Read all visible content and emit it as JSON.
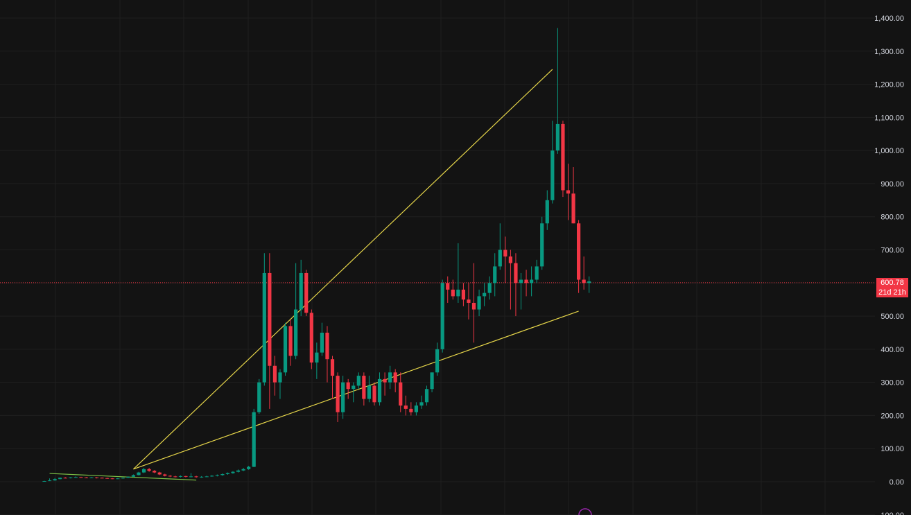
{
  "colors": {
    "background": "#131313",
    "grid": "#1f1f1f",
    "up": "#089981",
    "down": "#f23645",
    "trendline": "#e6d64a",
    "small_trendline": "#7cc146",
    "price_line": "#f23645",
    "axis_text": "#d1d4dc",
    "marker": "#9c27b0"
  },
  "price_badge": {
    "price": "600.78",
    "countdown": "21d 21h"
  },
  "chart_data": {
    "type": "candlestick",
    "ylim": [
      -100,
      1400
    ],
    "yticks": [
      "1,400.00",
      "1,300.00",
      "1,200.00",
      "1,100.00",
      "1,000.00",
      "900.00",
      "800.00",
      "700.00",
      "600.00",
      "500.00",
      "400.00",
      "300.00",
      "200.00",
      "100.00",
      "0.00",
      "-100.00"
    ],
    "ytick_values": [
      1400,
      1300,
      1200,
      1100,
      1000,
      900,
      800,
      700,
      600,
      500,
      400,
      300,
      200,
      100,
      0,
      -100
    ],
    "grid": true,
    "current_price": 600.78,
    "bar_count": 118,
    "candles": [
      [
        1,
        2,
        1,
        3,
        0
      ],
      [
        2,
        4,
        2,
        10,
        1
      ],
      [
        4,
        8,
        3,
        11,
        2
      ],
      [
        8,
        12,
        7,
        13,
        3
      ],
      [
        12,
        11,
        10,
        14,
        4
      ],
      [
        11,
        13,
        10,
        14,
        5
      ],
      [
        13,
        14,
        12,
        16,
        6
      ],
      [
        14,
        13,
        12,
        15,
        7
      ],
      [
        13,
        12,
        11,
        14,
        8
      ],
      [
        12,
        13,
        11,
        14,
        9
      ],
      [
        13,
        12,
        10,
        14,
        10
      ],
      [
        12,
        11,
        10,
        13,
        11
      ],
      [
        11,
        10,
        9,
        12,
        12
      ],
      [
        10,
        9,
        8,
        11,
        13
      ],
      [
        9,
        10,
        8,
        11,
        14
      ],
      [
        10,
        12,
        9,
        13,
        15
      ],
      [
        12,
        15,
        11,
        16,
        16
      ],
      [
        15,
        20,
        14,
        22,
        17
      ],
      [
        20,
        28,
        19,
        30,
        18
      ],
      [
        28,
        38,
        26,
        42,
        19
      ],
      [
        38,
        33,
        30,
        42,
        20
      ],
      [
        33,
        28,
        26,
        35,
        21
      ],
      [
        28,
        22,
        20,
        30,
        22
      ],
      [
        22,
        18,
        16,
        24,
        23
      ],
      [
        18,
        16,
        14,
        20,
        24
      ],
      [
        16,
        15,
        13,
        18,
        25
      ],
      [
        15,
        17,
        13,
        19,
        26
      ],
      [
        17,
        15,
        13,
        18,
        27
      ],
      [
        15,
        16,
        13,
        26,
        28
      ],
      [
        16,
        14,
        12,
        18,
        29
      ],
      [
        14,
        15,
        12,
        17,
        30
      ],
      [
        15,
        16,
        14,
        18,
        31
      ],
      [
        16,
        18,
        15,
        20,
        32
      ],
      [
        18,
        20,
        16,
        22,
        33
      ],
      [
        20,
        23,
        18,
        25,
        34
      ],
      [
        23,
        26,
        21,
        28,
        35
      ],
      [
        26,
        30,
        24,
        32,
        36
      ],
      [
        30,
        34,
        28,
        37,
        37
      ],
      [
        34,
        38,
        32,
        42,
        38
      ],
      [
        38,
        45,
        36,
        48,
        39
      ],
      [
        45,
        210,
        44,
        220,
        40
      ],
      [
        210,
        300,
        205,
        310,
        41
      ],
      [
        300,
        630,
        290,
        690,
        42
      ],
      [
        630,
        350,
        220,
        690,
        43
      ],
      [
        350,
        300,
        260,
        380,
        44
      ],
      [
        300,
        330,
        250,
        340,
        45
      ],
      [
        330,
        470,
        320,
        480,
        46
      ],
      [
        470,
        380,
        350,
        490,
        47
      ],
      [
        380,
        520,
        370,
        660,
        48
      ],
      [
        520,
        630,
        500,
        670,
        49
      ],
      [
        630,
        510,
        500,
        640,
        50
      ],
      [
        510,
        360,
        340,
        520,
        51
      ],
      [
        360,
        390,
        310,
        420,
        52
      ],
      [
        390,
        450,
        380,
        480,
        53
      ],
      [
        450,
        370,
        300,
        470,
        54
      ],
      [
        370,
        320,
        250,
        380,
        55
      ],
      [
        320,
        210,
        180,
        330,
        56
      ],
      [
        210,
        300,
        190,
        320,
        57
      ],
      [
        300,
        280,
        250,
        310,
        58
      ],
      [
        280,
        290,
        240,
        300,
        59
      ],
      [
        290,
        320,
        280,
        330,
        60
      ],
      [
        320,
        250,
        230,
        330,
        61
      ],
      [
        250,
        290,
        240,
        320,
        62
      ],
      [
        290,
        240,
        230,
        300,
        63
      ],
      [
        240,
        310,
        230,
        330,
        64
      ],
      [
        310,
        300,
        260,
        330,
        65
      ],
      [
        300,
        330,
        280,
        350,
        66
      ],
      [
        330,
        300,
        270,
        340,
        67
      ],
      [
        300,
        230,
        210,
        330,
        68
      ],
      [
        230,
        220,
        200,
        260,
        69
      ],
      [
        220,
        210,
        200,
        240,
        70
      ],
      [
        210,
        230,
        200,
        240,
        71
      ],
      [
        230,
        240,
        220,
        260,
        72
      ],
      [
        240,
        280,
        230,
        290,
        73
      ],
      [
        280,
        330,
        270,
        330,
        74
      ],
      [
        330,
        400,
        320,
        420,
        75
      ],
      [
        400,
        600,
        390,
        610,
        76
      ],
      [
        600,
        580,
        540,
        620,
        77
      ],
      [
        580,
        560,
        550,
        610,
        78
      ],
      [
        560,
        580,
        540,
        720,
        79
      ],
      [
        580,
        550,
        530,
        600,
        80
      ],
      [
        550,
        540,
        490,
        600,
        81
      ],
      [
        540,
        520,
        420,
        660,
        82
      ],
      [
        520,
        560,
        500,
        580,
        83
      ],
      [
        560,
        570,
        530,
        600,
        84
      ],
      [
        570,
        600,
        550,
        620,
        85
      ],
      [
        600,
        650,
        560,
        690,
        86
      ],
      [
        650,
        700,
        640,
        780,
        87
      ],
      [
        700,
        680,
        600,
        740,
        88
      ],
      [
        680,
        660,
        520,
        700,
        89
      ],
      [
        660,
        600,
        500,
        690,
        90
      ],
      [
        600,
        610,
        520,
        630,
        91
      ],
      [
        610,
        600,
        560,
        640,
        92
      ],
      [
        600,
        610,
        560,
        650,
        93
      ],
      [
        610,
        650,
        600,
        670,
        94
      ],
      [
        650,
        780,
        640,
        800,
        95
      ],
      [
        780,
        850,
        760,
        880,
        96
      ],
      [
        850,
        1000,
        840,
        1090,
        97
      ],
      [
        1000,
        1080,
        990,
        1370,
        98
      ],
      [
        1080,
        880,
        860,
        1090,
        99
      ],
      [
        880,
        870,
        790,
        960,
        100
      ],
      [
        870,
        780,
        780,
        950,
        101
      ],
      [
        780,
        610,
        570,
        790,
        102
      ],
      [
        610,
        600,
        580,
        680,
        103
      ],
      [
        600,
        605,
        570,
        620,
        104
      ]
    ],
    "trendlines": [
      {
        "from": [
          17,
          38
        ],
        "to": [
          97,
          1245
        ],
        "color": "trendline"
      },
      {
        "from": [
          17,
          38
        ],
        "to": [
          102,
          515
        ],
        "color": "trendline"
      },
      {
        "from": [
          1,
          25
        ],
        "to": [
          29,
          5
        ],
        "color": "small_trendline"
      }
    ]
  }
}
